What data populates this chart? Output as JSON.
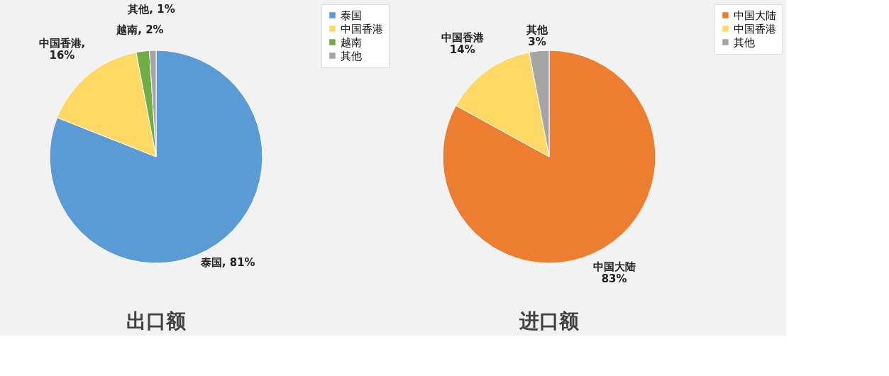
{
  "chart_data": [
    {
      "type": "pie",
      "title": "出口额",
      "categories": [
        "泰国",
        "中国香港",
        "越南",
        "其他"
      ],
      "values": [
        81,
        16,
        2,
        1
      ],
      "colors": [
        "#5b9bd5",
        "#ffd966",
        "#70ad47",
        "#a5a5a5"
      ],
      "value_labels": [
        "泰国, 81%",
        "中国香港,\n16%",
        "越南, 2%",
        "其他, 1%"
      ],
      "legend": "right"
    },
    {
      "type": "pie",
      "title": "进口额",
      "categories": [
        "中国大陆",
        "中国香港",
        "其他"
      ],
      "values": [
        83,
        14,
        3
      ],
      "colors": [
        "#ed7d31",
        "#ffd966",
        "#a5a5a5"
      ],
      "value_labels": [
        "中国大陆\n83%",
        "中国香港\n14%",
        "其他\n3%"
      ],
      "legend": "right"
    }
  ]
}
